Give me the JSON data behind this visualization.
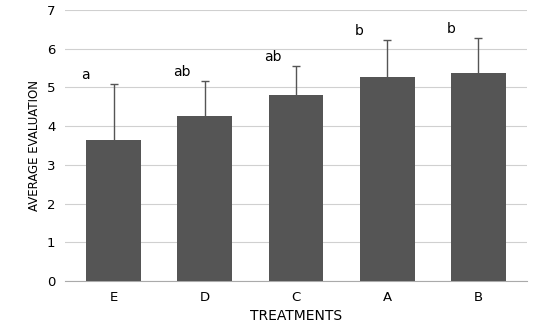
{
  "categories": [
    "E",
    "D",
    "C",
    "A",
    "B"
  ],
  "values": [
    3.63,
    4.27,
    4.8,
    5.27,
    5.37
  ],
  "errors": [
    1.45,
    0.9,
    0.75,
    0.95,
    0.9
  ],
  "significance": [
    "a",
    "ab",
    "ab",
    "b",
    "b"
  ],
  "bar_color": "#555555",
  "error_color": "#555555",
  "xlabel": "TREATMENTS",
  "ylabel": "AVERAGE EVALUATION",
  "ylim": [
    0,
    7
  ],
  "yticks": [
    0,
    1,
    2,
    3,
    4,
    5,
    6,
    7
  ],
  "grid_color": "#d0d0d0",
  "background_color": "#ffffff",
  "bar_width": 0.6,
  "xlabel_fontsize": 10,
  "ylabel_fontsize": 8.5,
  "tick_fontsize": 9.5,
  "sig_fontsize": 10
}
